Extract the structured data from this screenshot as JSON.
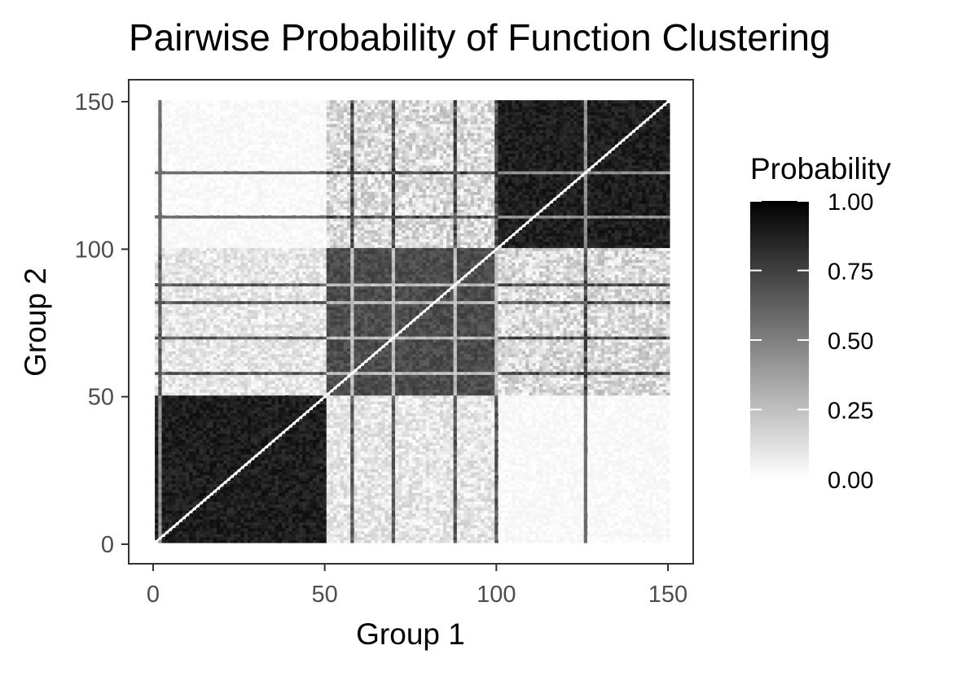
{
  "chart_data": {
    "type": "heatmap",
    "title": "Pairwise Probability of Function Clustering",
    "xlabel": "Group 1",
    "ylabel": "Group 2",
    "x_ticks": [
      "0",
      "50",
      "100",
      "150"
    ],
    "y_ticks": [
      "0",
      "50",
      "100",
      "150"
    ],
    "xlim": [
      1,
      150
    ],
    "ylim": [
      1,
      150
    ],
    "legend": {
      "title": "Probability",
      "ticks": [
        "0.00",
        "0.25",
        "0.50",
        "0.75",
        "1.00"
      ],
      "range": [
        0,
        1
      ],
      "position": "right",
      "low_color": "#ffffff",
      "high_color": "#000000"
    },
    "grid": false,
    "diagonal_value": 0,
    "clusters": [
      {
        "range": [
          1,
          50
        ],
        "within_probability": 0.88
      },
      {
        "range": [
          51,
          100
        ],
        "within_probability": 0.7
      },
      {
        "range": [
          101,
          150
        ],
        "within_probability": 0.88
      }
    ],
    "cross_cluster_probability": {
      "1-2": 0.12,
      "1-3": 0.03,
      "2-3": 0.18
    },
    "highlighted_lines": {
      "x": [
        2,
        58,
        70,
        88,
        100,
        126
      ],
      "y": [
        58,
        70,
        82,
        88,
        111,
        126
      ]
    }
  }
}
